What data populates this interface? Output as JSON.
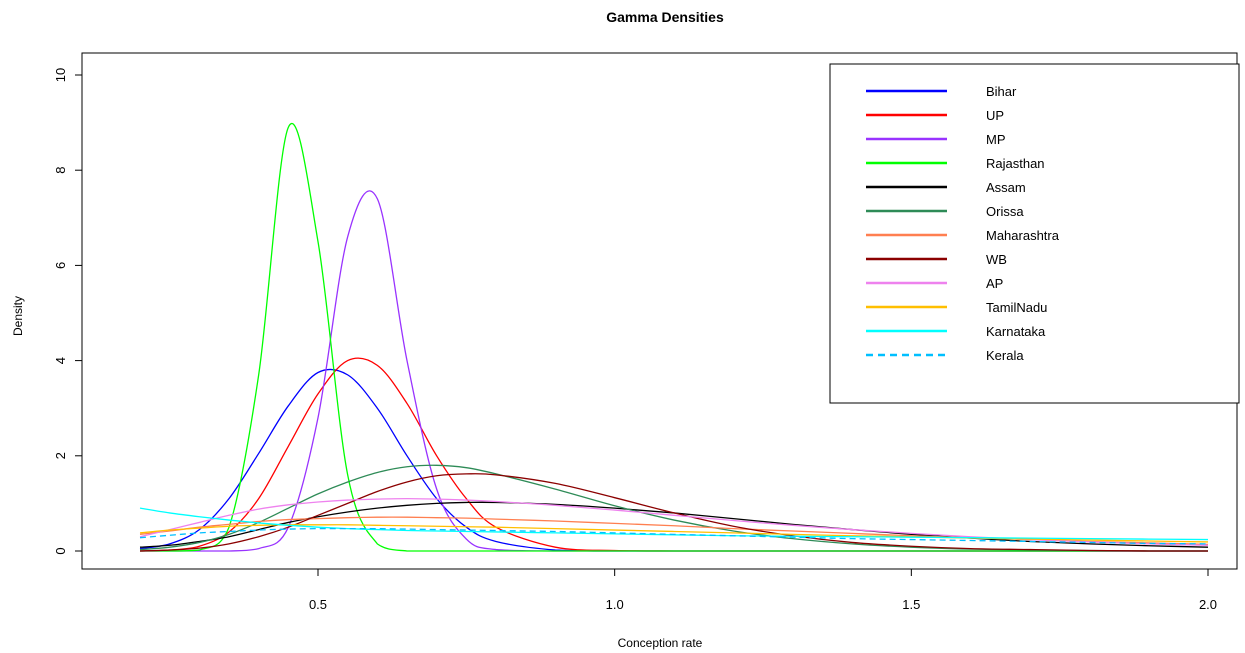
{
  "chart_data": {
    "type": "line",
    "title": "Gamma Densities",
    "xlabel": "Conception rate",
    "ylabel": "Density",
    "xlim": [
      0.2,
      2.0
    ],
    "ylim": [
      0,
      10
    ],
    "x_ticks": [
      "0.5",
      "1.0",
      "1.5",
      "2.0"
    ],
    "y_ticks": [
      "0",
      "2",
      "4",
      "6",
      "8",
      "10"
    ],
    "legend_position": "top-right",
    "x_grid": [
      0.2,
      0.25,
      0.3,
      0.35,
      0.4,
      0.45,
      0.5,
      0.55,
      0.6,
      0.65,
      0.7,
      0.75,
      0.8,
      0.9,
      1.0,
      1.1,
      1.2,
      1.3,
      1.4,
      1.5,
      1.6,
      1.7,
      1.8,
      1.9,
      2.0
    ],
    "series": [
      {
        "name": "Bihar",
        "color": "#0000ff",
        "dash": "solid",
        "y": [
          0.05,
          0.15,
          0.45,
          1.1,
          2.05,
          3.05,
          3.75,
          3.7,
          3.0,
          2.0,
          1.1,
          0.5,
          0.2,
          0.02,
          0.0,
          0,
          0,
          0,
          0,
          0,
          0,
          0,
          0,
          0,
          0
        ]
      },
      {
        "name": "UP",
        "color": "#ff0000",
        "dash": "solid",
        "y": [
          0.0,
          0.02,
          0.1,
          0.4,
          1.1,
          2.2,
          3.3,
          4.0,
          3.9,
          3.1,
          2.0,
          1.1,
          0.5,
          0.08,
          0.01,
          0,
          0,
          0,
          0,
          0,
          0,
          0,
          0,
          0,
          0
        ]
      },
      {
        "name": "MP",
        "color": "#9933ff",
        "dash": "solid",
        "y": [
          0,
          0,
          0,
          0.0,
          0.05,
          0.5,
          2.8,
          6.6,
          7.4,
          4.0,
          1.3,
          0.25,
          0.03,
          0.0,
          0,
          0,
          0,
          0,
          0,
          0,
          0,
          0,
          0,
          0,
          0
        ]
      },
      {
        "name": "Rajasthan",
        "color": "#00ff00",
        "dash": "solid",
        "y": [
          0,
          0.0,
          0.02,
          0.5,
          3.7,
          8.9,
          6.5,
          1.6,
          0.15,
          0.0,
          0,
          0,
          0,
          0,
          0,
          0,
          0,
          0,
          0,
          0,
          0,
          0,
          0,
          0,
          0
        ]
      },
      {
        "name": "Assam",
        "color": "#000000",
        "dash": "solid",
        "y": [
          0.08,
          0.12,
          0.2,
          0.3,
          0.45,
          0.6,
          0.72,
          0.82,
          0.9,
          0.96,
          1.0,
          1.02,
          1.02,
          0.98,
          0.9,
          0.8,
          0.68,
          0.56,
          0.45,
          0.35,
          0.27,
          0.2,
          0.15,
          0.11,
          0.08
        ]
      },
      {
        "name": "Orissa",
        "color": "#2e8b57",
        "dash": "solid",
        "y": [
          0.03,
          0.08,
          0.18,
          0.35,
          0.6,
          0.9,
          1.2,
          1.45,
          1.65,
          1.77,
          1.8,
          1.75,
          1.62,
          1.3,
          0.95,
          0.65,
          0.42,
          0.26,
          0.15,
          0.08,
          0.04,
          0.02,
          0.01,
          0.0,
          0.0
        ]
      },
      {
        "name": "Maharashtra",
        "color": "#ff7f50",
        "dash": "solid",
        "y": [
          0.35,
          0.42,
          0.5,
          0.56,
          0.62,
          0.66,
          0.68,
          0.7,
          0.71,
          0.71,
          0.7,
          0.69,
          0.67,
          0.63,
          0.58,
          0.53,
          0.47,
          0.42,
          0.37,
          0.32,
          0.28,
          0.24,
          0.2,
          0.17,
          0.14
        ]
      },
      {
        "name": "WB",
        "color": "#8b0000",
        "dash": "solid",
        "y": [
          0.0,
          0.02,
          0.06,
          0.15,
          0.3,
          0.5,
          0.75,
          1.0,
          1.25,
          1.45,
          1.58,
          1.62,
          1.6,
          1.42,
          1.12,
          0.8,
          0.52,
          0.32,
          0.18,
          0.1,
          0.05,
          0.03,
          0.01,
          0.0,
          0.0
        ]
      },
      {
        "name": "AP",
        "color": "#ee82ee",
        "dash": "solid",
        "y": [
          0.3,
          0.45,
          0.6,
          0.75,
          0.88,
          0.97,
          1.03,
          1.07,
          1.09,
          1.1,
          1.09,
          1.07,
          1.04,
          0.96,
          0.86,
          0.75,
          0.64,
          0.54,
          0.45,
          0.37,
          0.3,
          0.24,
          0.19,
          0.15,
          0.12
        ]
      },
      {
        "name": "TamilNadu",
        "color": "#ffbf00",
        "dash": "solid",
        "y": [
          0.38,
          0.44,
          0.48,
          0.52,
          0.54,
          0.55,
          0.55,
          0.55,
          0.54,
          0.53,
          0.52,
          0.51,
          0.5,
          0.47,
          0.44,
          0.41,
          0.38,
          0.35,
          0.32,
          0.3,
          0.27,
          0.25,
          0.23,
          0.21,
          0.19
        ]
      },
      {
        "name": "Karnataka",
        "color": "#00ffff",
        "dash": "solid",
        "y": [
          0.9,
          0.8,
          0.72,
          0.65,
          0.59,
          0.54,
          0.5,
          0.47,
          0.45,
          0.43,
          0.42,
          0.41,
          0.4,
          0.38,
          0.36,
          0.34,
          0.32,
          0.31,
          0.3,
          0.29,
          0.28,
          0.27,
          0.26,
          0.25,
          0.24
        ]
      },
      {
        "name": "Kerala",
        "color": "#00bfff",
        "dash": "dashed",
        "y": [
          0.28,
          0.33,
          0.38,
          0.41,
          0.44,
          0.46,
          0.47,
          0.47,
          0.47,
          0.46,
          0.45,
          0.44,
          0.43,
          0.41,
          0.38,
          0.35,
          0.32,
          0.29,
          0.26,
          0.24,
          0.22,
          0.2,
          0.18,
          0.16,
          0.15
        ]
      }
    ]
  }
}
